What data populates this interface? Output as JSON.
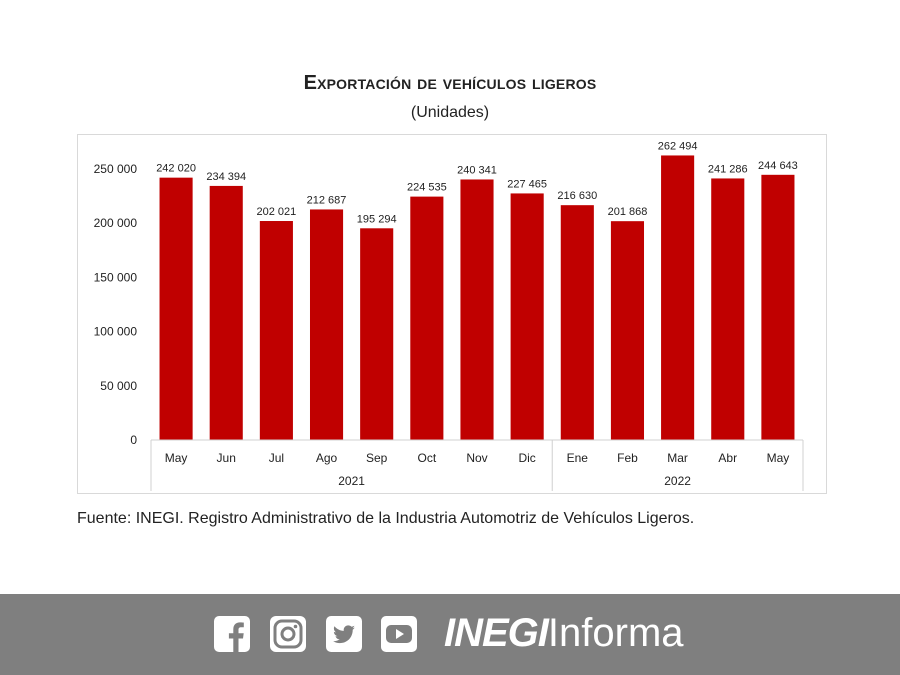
{
  "title_first_letter": "E",
  "title_rest": "xportación de vehículos ligeros",
  "subtitle": "(Unidades)",
  "source": "Fuente: INEGI. Registro Administrativo de la Industria Automotriz de Vehículos Ligeros.",
  "footer": {
    "social_icons": [
      "facebook-icon",
      "instagram-icon",
      "twitter-icon",
      "youtube-icon"
    ],
    "brand_strong": "INEGI",
    "brand_light": "Informa",
    "background": "#7f7f7f"
  },
  "chart_data": {
    "type": "bar",
    "title": "Exportación de vehículos ligeros",
    "subtitle": "(Unidades)",
    "categories": [
      "May",
      "Jun",
      "Jul",
      "Ago",
      "Sep",
      "Oct",
      "Nov",
      "Dic",
      "Ene",
      "Feb",
      "Mar",
      "Abr",
      "May"
    ],
    "groups": [
      {
        "label": "2021",
        "count": 8
      },
      {
        "label": "2022",
        "count": 5
      }
    ],
    "values": [
      242020,
      234394,
      202021,
      212687,
      195294,
      224535,
      240341,
      227465,
      216630,
      201868,
      262494,
      241286,
      244643
    ],
    "data_labels": [
      "242 020",
      "234 394",
      "202 021",
      "212 687",
      "195 294",
      "224 535",
      "240 341",
      "227 465",
      "216 630",
      "201 868",
      "262 494",
      "241 286",
      "244 643"
    ],
    "y_ticks": [
      0,
      50000,
      100000,
      150000,
      200000,
      250000
    ],
    "y_tick_labels": [
      "0",
      "50 000",
      "100 000",
      "150 000",
      "200 000",
      "250 000"
    ],
    "ylim": [
      0,
      280000
    ],
    "grid": false,
    "bar_color": "#c00000"
  }
}
